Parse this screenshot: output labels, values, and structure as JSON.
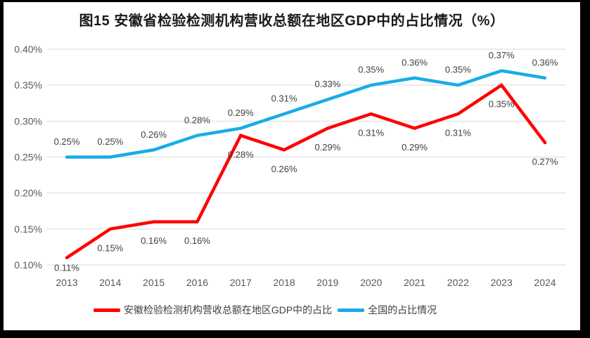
{
  "chart_data": {
    "type": "line",
    "title": "图15 安徽省检验检测机构营收总额在地区GDP中的占比情况（%）",
    "categories": [
      "2013",
      "2014",
      "2015",
      "2016",
      "2017",
      "2018",
      "2019",
      "2020",
      "2021",
      "2022",
      "2023",
      "2024"
    ],
    "series": [
      {
        "name": "安徽检验检测机构营收总额在地区GDP中的占比",
        "color": "#FE0000",
        "label_position": "below",
        "values": [
          0.11,
          0.15,
          0.16,
          0.16,
          0.28,
          0.26,
          0.29,
          0.31,
          0.29,
          0.31,
          0.35,
          0.27
        ],
        "labels": [
          "0.11%",
          "0.15%",
          "0.16%",
          "0.16%",
          "0.28%",
          "0.26%",
          "0.29%",
          "0.31%",
          "0.29%",
          "0.31%",
          "0.35%",
          "0.27%"
        ]
      },
      {
        "name": "全国的占比情况",
        "color": "#18ACE8",
        "label_position": "above",
        "values": [
          0.25,
          0.25,
          0.26,
          0.28,
          0.29,
          0.31,
          0.33,
          0.35,
          0.36,
          0.35,
          0.37,
          0.36
        ],
        "labels": [
          "0.25%",
          "0.25%",
          "0.26%",
          "0.28%",
          "0.29%",
          "0.31%",
          "0.33%",
          "0.35%",
          "0.36%",
          "0.35%",
          "0.37%",
          "0.36%"
        ]
      }
    ],
    "ylim": [
      0.1,
      0.4
    ],
    "yticks": [
      {
        "value": 0.1,
        "label": "0.10%"
      },
      {
        "value": 0.15,
        "label": "0.15%"
      },
      {
        "value": 0.2,
        "label": "0.20%"
      },
      {
        "value": 0.25,
        "label": "0.25%"
      },
      {
        "value": 0.3,
        "label": "0.30%"
      },
      {
        "value": 0.35,
        "label": "0.35%"
      },
      {
        "value": 0.4,
        "label": "0.40%"
      }
    ],
    "grid": true,
    "grid_color": "#D9D9D9",
    "legend_position": "bottom"
  }
}
